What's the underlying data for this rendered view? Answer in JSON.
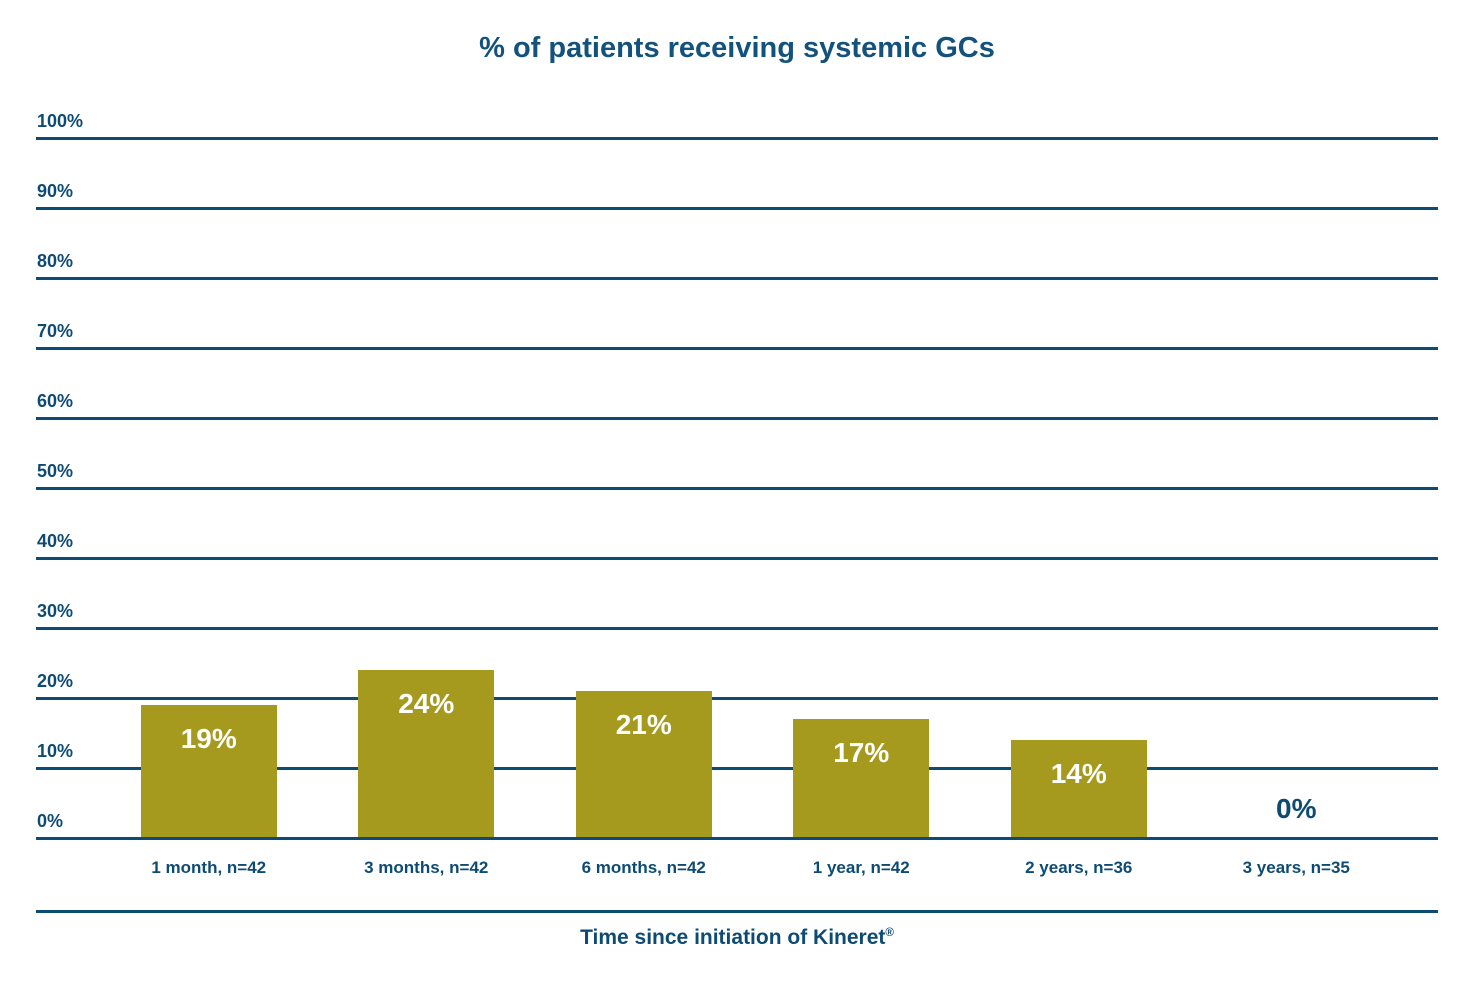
{
  "chart_data": {
    "type": "bar",
    "title": "% of patients receiving systemic GCs",
    "categories": [
      "1 month, n=42",
      "3 months, n=42",
      "6 months, n=42",
      "1 year, n=42",
      "2 years, n=36",
      "3 years, n=35"
    ],
    "values": [
      19,
      24,
      21,
      17,
      14,
      0
    ],
    "bar_labels": [
      "19%",
      "24%",
      "21%",
      "17%",
      "14%",
      "0%"
    ],
    "xlabel": "Time since initiation of Kineret®",
    "xlabel_main": "Time since initiation of Kineret",
    "xlabel_sup": "®",
    "ylabel": "",
    "ylim": [
      0,
      100
    ],
    "ytick_values": [
      0,
      10,
      20,
      30,
      40,
      50,
      60,
      70,
      80,
      90,
      100
    ],
    "ytick_labels": [
      "0%",
      "10%",
      "20%",
      "30%",
      "40%",
      "50%",
      "60%",
      "70%",
      "80%",
      "90%",
      "100%"
    ],
    "grid": true,
    "legend": false,
    "colors": {
      "bar": "#A69A1E",
      "bar_value_text": "#FFFFFF",
      "zero_value_text": "#0E4B74",
      "axis_text": "#0E4B74",
      "gridline": "#0E4B74",
      "title_text": "#13527D",
      "background": "#FFFFFF"
    }
  }
}
